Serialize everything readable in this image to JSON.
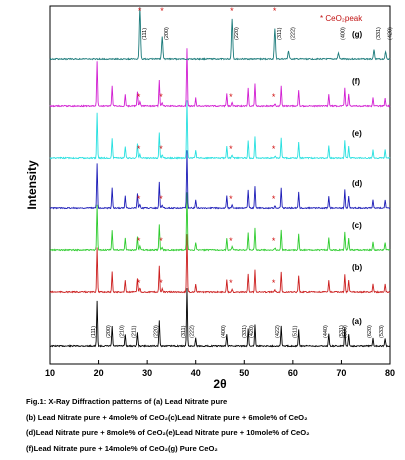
{
  "chart_data": {
    "type": "line",
    "xlabel": "2θ",
    "ylabel": "Intensity",
    "xlim": [
      10,
      80
    ],
    "x_ticks": [
      "10",
      "20",
      "30",
      "40",
      "50",
      "60",
      "70",
      "80"
    ],
    "legend_title": "* CeO₂peak",
    "ceo2_peak_labels": [
      "(111)",
      "(200)",
      "(220)",
      "(311)",
      "(222)",
      "(400)",
      "(331)",
      "(420)"
    ],
    "ceo2_peak_2theta": [
      28.5,
      33.1,
      47.5,
      56.3,
      59.1,
      69.4,
      76.7,
      79.1
    ],
    "lead_nitrate_peak_labels": [
      "(111)",
      "(200)",
      "(210)",
      "(211)",
      "(220)",
      "(311)",
      "(222)",
      "(400)",
      "(331)",
      "(420)",
      "(422)",
      "(511)",
      "(440)",
      "(531)",
      "(600)",
      "(620)",
      "(533)"
    ],
    "lead_nitrate_peak_2theta": [
      19.7,
      22.8,
      25.5,
      28.0,
      32.5,
      38.2,
      40.0,
      46.4,
      50.8,
      52.2,
      57.6,
      61.2,
      67.4,
      70.7,
      71.5,
      76.5,
      79.0
    ],
    "series": [
      {
        "name": "(a)",
        "color": "#000000",
        "ceo2_marks": []
      },
      {
        "name": "(b)",
        "color": "#cc1f1f",
        "ceo2_marks": [
          28.5,
          33.1,
          47.5,
          56.3
        ]
      },
      {
        "name": "(c)",
        "color": "#2ecc2e",
        "ceo2_marks": [
          28.5,
          33.1,
          47.5,
          56.3
        ]
      },
      {
        "name": "(d)",
        "color": "#1d1db8",
        "ceo2_marks": [
          28.5,
          33.1,
          47.5,
          56.3
        ]
      },
      {
        "name": "(e)",
        "color": "#28e0e0",
        "ceo2_marks": [
          28.5,
          33.1,
          47.5,
          56.3
        ]
      },
      {
        "name": "(f)",
        "color": "#d21fd2",
        "ceo2_marks": [
          28.5,
          33.1,
          47.5,
          56.3
        ]
      },
      {
        "name": "(g)",
        "color": "#1a7a7a",
        "ceo2_marks": []
      }
    ]
  },
  "caption": {
    "line1": "Fig.1: X-Ray Diffraction patterns of (a) Lead Nitrate pure",
    "line2": "(b) Lead Nitrate pure + 4mole% of CeO₂(c)Lead Nitrate pure + 6mole% of CeO₂",
    "line3": "(d)Lead Nitrate pure + 8mole% of CeO₂(e)Lead Nitrate pure + 10mole% of CeO₂",
    "line4": "(f)Lead Nitrate pure + 14mole% of CeO₂(g) Pure CeO₂"
  }
}
